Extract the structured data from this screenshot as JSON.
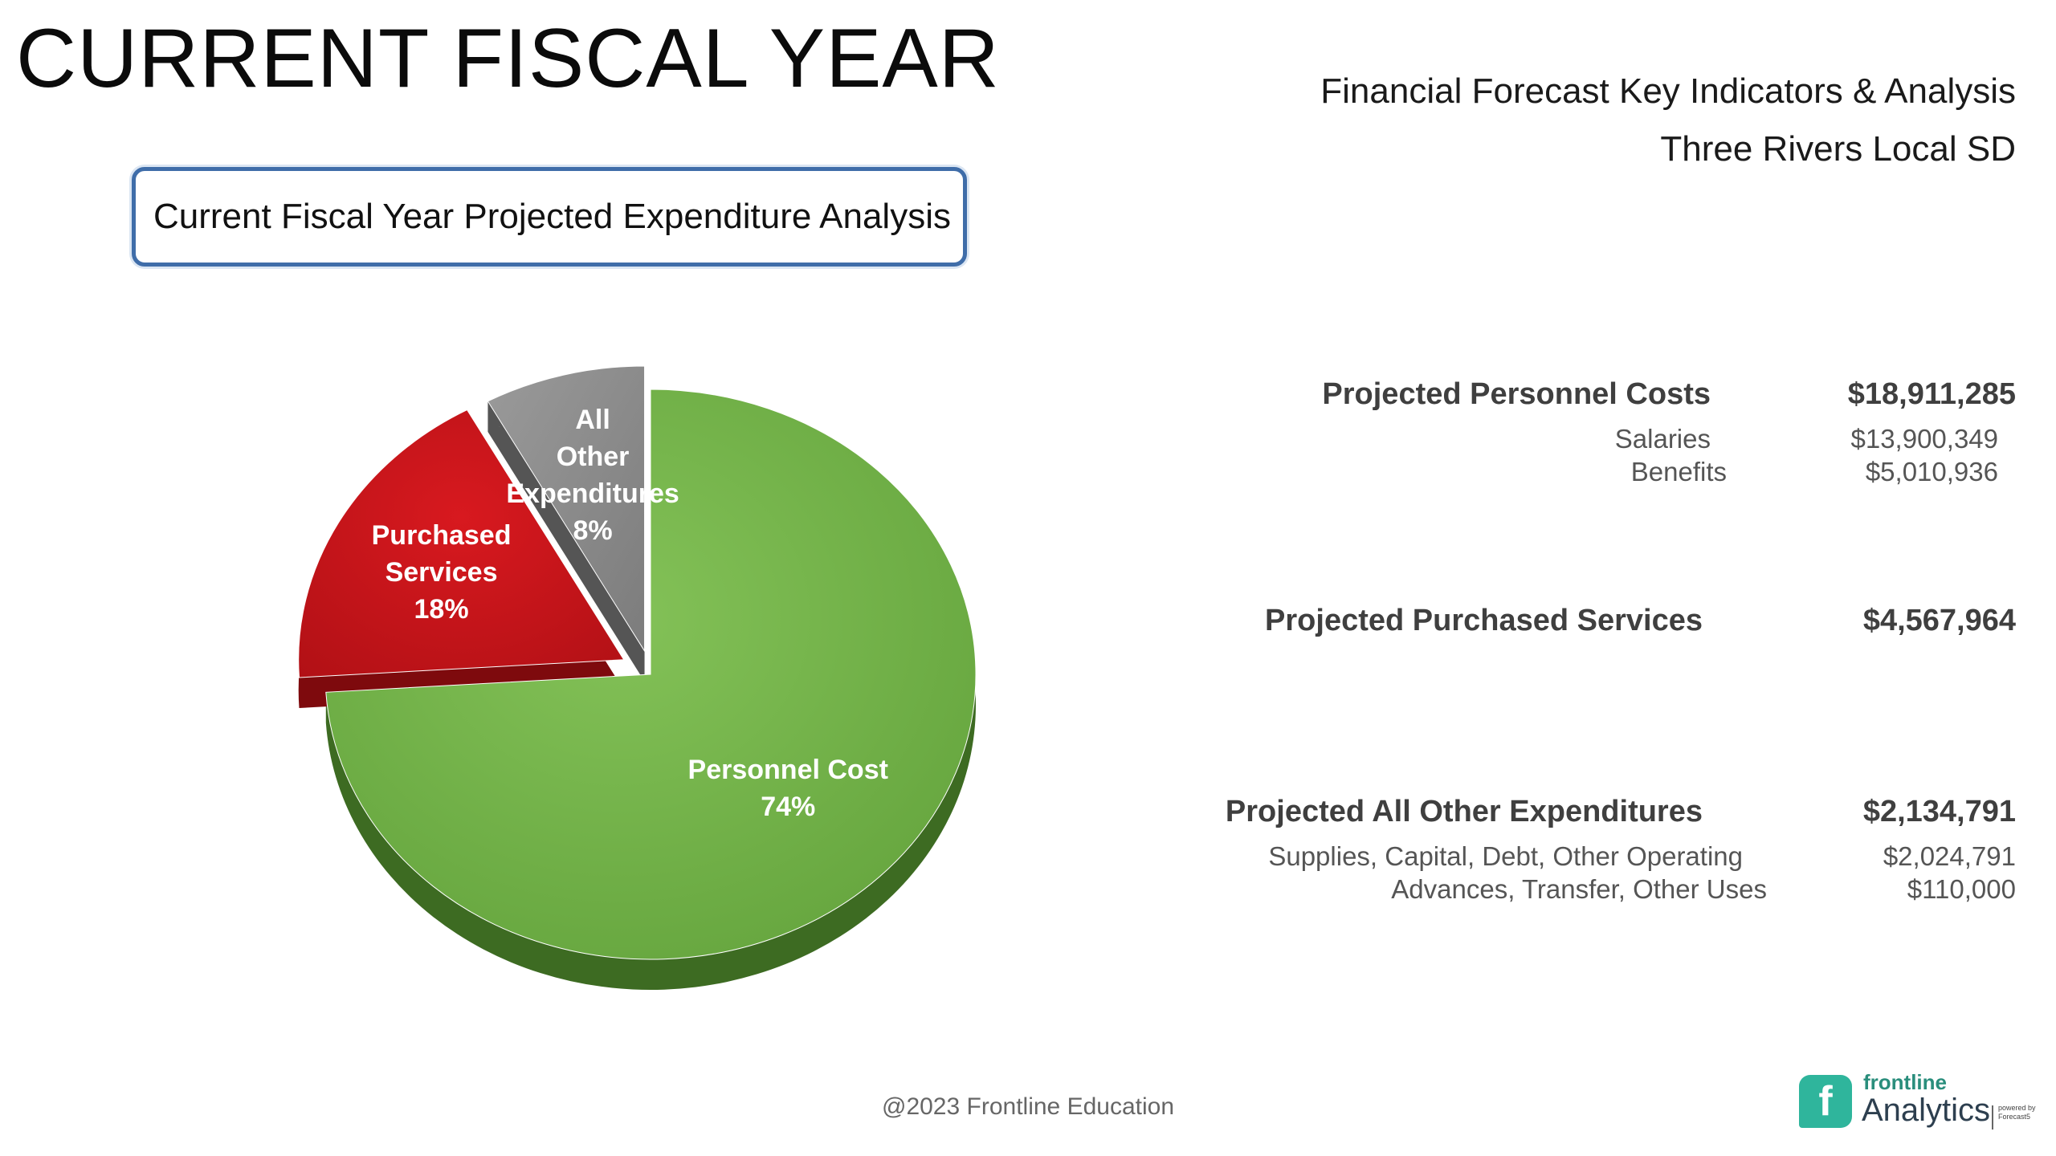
{
  "page": {
    "title": "CURRENT FISCAL YEAR",
    "header_line1": "Financial Forecast Key Indicators & Analysis",
    "header_line2": "Three Rivers Local SD",
    "box_title": "Current Fiscal Year Projected Expenditure Analysis"
  },
  "chart_data": {
    "type": "pie",
    "slices": [
      {
        "label": "Personnel Cost",
        "value": 74,
        "pct_label": "74%",
        "color": "#74b149"
      },
      {
        "label": "Purchased Services",
        "value": 18,
        "pct_label": "18%",
        "color": "#c0161b"
      },
      {
        "label": "All Other Expenditures",
        "value": 8,
        "pct_label": "8%",
        "color": "#8c8c8c"
      }
    ],
    "style": "3d-exploded"
  },
  "summary": {
    "personnel": {
      "label": "Projected Personnel Costs",
      "amount": "$18,911,285",
      "items": [
        {
          "label": "Salaries",
          "amount": "$13,900,349"
        },
        {
          "label": "Benefits",
          "amount": "$5,010,936"
        }
      ]
    },
    "purchased": {
      "label": "Projected Purchased Services",
      "amount": "$4,567,964"
    },
    "other": {
      "label": "Projected All Other Expenditures",
      "amount": "$2,134,791",
      "items": [
        {
          "label": "Supplies, Capital, Debt, Other Operating",
          "amount": "$2,024,791"
        },
        {
          "label": "Advances, Transfer, Other Uses",
          "amount": "$110,000"
        }
      ]
    }
  },
  "footer": {
    "copyright": "@2023 Frontline Education"
  },
  "logo": {
    "brand": "frontline",
    "product": "Analytics",
    "powered_by": "powered by Forecast5",
    "brand_color": "#2fb59c",
    "icon": "frontline-logo-icon"
  }
}
